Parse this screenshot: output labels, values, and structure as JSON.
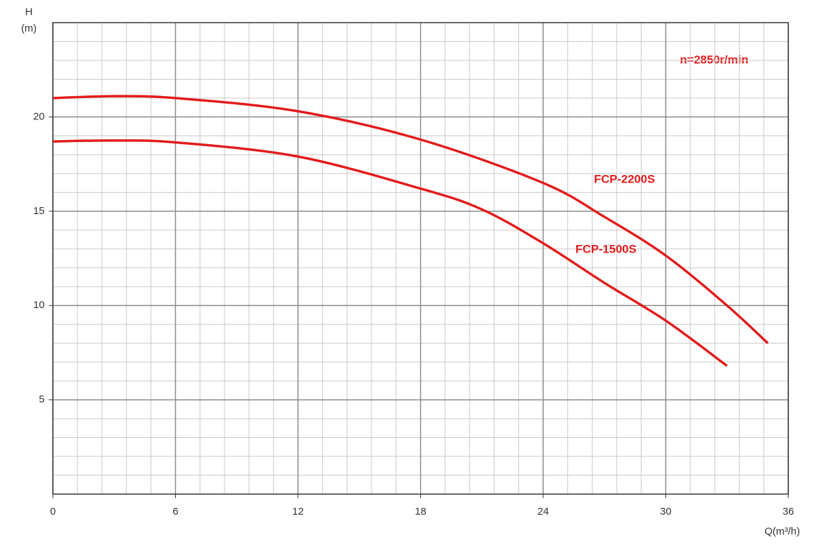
{
  "chart_data": {
    "type": "line",
    "annotation": "n=2850r/min",
    "x_label": "Q(m³/h)",
    "y_label": [
      "H",
      "(m)"
    ],
    "xlim": [
      0,
      36
    ],
    "xticks": [
      0,
      6,
      12,
      18,
      24,
      30,
      36
    ],
    "ylim": [
      0,
      25
    ],
    "yticks": [
      5,
      10,
      15,
      20
    ],
    "grid": true,
    "series": [
      {
        "name": "FCP-2200S",
        "color": "#e31b1b",
        "x": [
          0,
          3,
          6,
          12,
          18,
          24,
          27,
          30,
          33,
          35
        ],
        "values": [
          21.0,
          21.1,
          21.0,
          20.3,
          18.8,
          16.5,
          14.7,
          12.65,
          10.0,
          8.0
        ]
      },
      {
        "name": "FCP-1500S",
        "color": "#e31b1b",
        "x": [
          0,
          3,
          6,
          12,
          18,
          21,
          24,
          27,
          30,
          33
        ],
        "values": [
          18.7,
          18.75,
          18.65,
          17.9,
          16.2,
          15.1,
          13.3,
          11.2,
          9.2,
          6.8
        ]
      }
    ]
  }
}
